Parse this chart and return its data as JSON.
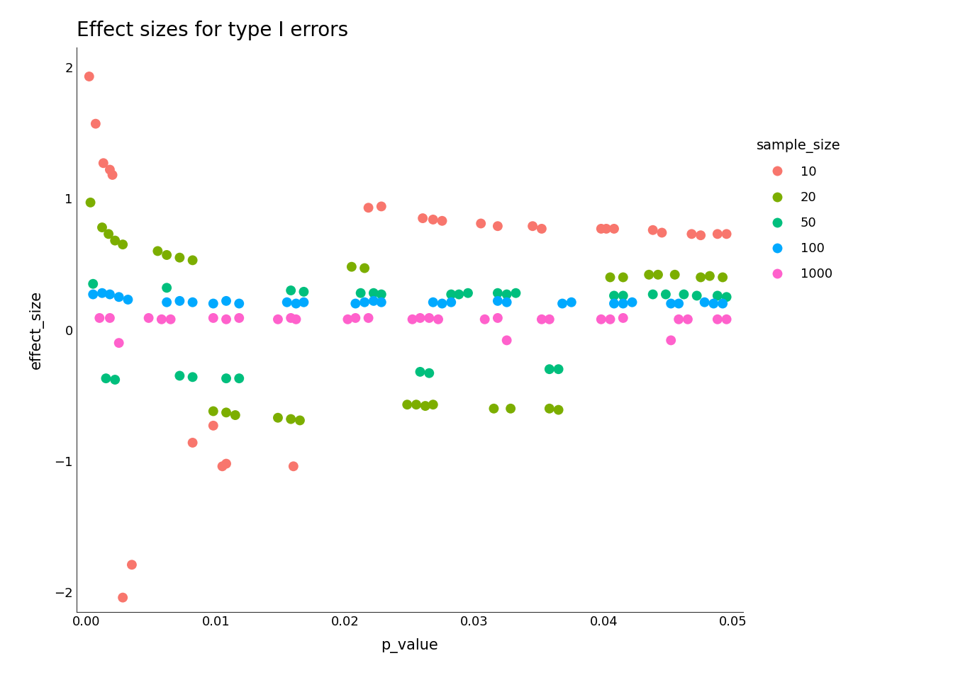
{
  "title": "Effect sizes for type I errors",
  "xlabel": "p_value",
  "ylabel": "effect_size",
  "xlim": [
    -0.0008,
    0.0508
  ],
  "ylim": [
    -2.15,
    2.15
  ],
  "xticks": [
    0.0,
    0.01,
    0.02,
    0.03,
    0.04,
    0.05
  ],
  "yticks": [
    -2,
    -1,
    0,
    1,
    2
  ],
  "background_color": "#ffffff",
  "legend_title": "sample_size",
  "groups": {
    "10": {
      "color": "#F8766D",
      "p_values": [
        0.0002,
        0.0007,
        0.0013,
        0.0018,
        0.002,
        0.0082,
        0.0098,
        0.0105,
        0.0108,
        0.016,
        0.0218,
        0.0228,
        0.026,
        0.0268,
        0.0275,
        0.0305,
        0.0318,
        0.0345,
        0.0352,
        0.0398,
        0.0402,
        0.0408,
        0.0438,
        0.0445,
        0.0468,
        0.0475,
        0.0488,
        0.0495,
        0.0028,
        0.0035
      ],
      "effect_sizes": [
        1.93,
        1.57,
        1.27,
        1.22,
        1.18,
        -0.86,
        -0.73,
        -1.04,
        -1.02,
        -1.04,
        0.93,
        0.94,
        0.85,
        0.84,
        0.83,
        0.81,
        0.79,
        0.79,
        0.77,
        0.77,
        0.77,
        0.77,
        0.76,
        0.74,
        0.73,
        0.72,
        0.73,
        0.73,
        -2.04,
        -1.79
      ]
    },
    "20": {
      "color": "#7CAE00",
      "p_values": [
        0.0003,
        0.0012,
        0.0017,
        0.0022,
        0.0028,
        0.0055,
        0.0062,
        0.0072,
        0.0082,
        0.0098,
        0.0108,
        0.0115,
        0.0148,
        0.0158,
        0.0165,
        0.0205,
        0.0215,
        0.0248,
        0.0255,
        0.0262,
        0.0268,
        0.0315,
        0.0328,
        0.0358,
        0.0365,
        0.0405,
        0.0415,
        0.0435,
        0.0442,
        0.0455,
        0.0475,
        0.0482,
        0.0492
      ],
      "effect_sizes": [
        0.97,
        0.78,
        0.73,
        0.68,
        0.65,
        0.6,
        0.57,
        0.55,
        0.53,
        -0.62,
        -0.63,
        -0.65,
        -0.67,
        -0.68,
        -0.69,
        0.48,
        0.47,
        -0.57,
        -0.57,
        -0.58,
        -0.57,
        -0.6,
        -0.6,
        -0.6,
        -0.61,
        0.4,
        0.4,
        0.42,
        0.42,
        0.42,
        0.4,
        0.41,
        0.4
      ]
    },
    "50": {
      "color": "#00BF7D",
      "p_values": [
        0.0005,
        0.0015,
        0.0022,
        0.0062,
        0.0072,
        0.0082,
        0.0108,
        0.0118,
        0.0158,
        0.0168,
        0.0212,
        0.0222,
        0.0228,
        0.0258,
        0.0265,
        0.0282,
        0.0288,
        0.0295,
        0.0318,
        0.0325,
        0.0332,
        0.0358,
        0.0365,
        0.0408,
        0.0415,
        0.0438,
        0.0448,
        0.0462,
        0.0472,
        0.0488,
        0.0495
      ],
      "effect_sizes": [
        0.35,
        -0.37,
        -0.38,
        0.32,
        -0.35,
        -0.36,
        -0.37,
        -0.37,
        0.3,
        0.29,
        0.28,
        0.28,
        0.27,
        -0.32,
        -0.33,
        0.27,
        0.27,
        0.28,
        0.28,
        0.27,
        0.28,
        -0.3,
        -0.3,
        0.26,
        0.26,
        0.27,
        0.27,
        0.27,
        0.26,
        0.26,
        0.25
      ]
    },
    "100": {
      "color": "#00A9FF",
      "p_values": [
        0.0005,
        0.0012,
        0.0018,
        0.0025,
        0.0032,
        0.0062,
        0.0072,
        0.0082,
        0.0098,
        0.0108,
        0.0118,
        0.0155,
        0.0162,
        0.0168,
        0.0208,
        0.0215,
        0.0222,
        0.0228,
        0.0268,
        0.0275,
        0.0282,
        0.0318,
        0.0325,
        0.0368,
        0.0375,
        0.0408,
        0.0415,
        0.0422,
        0.0452,
        0.0458,
        0.0478,
        0.0485,
        0.0492
      ],
      "effect_sizes": [
        0.27,
        0.28,
        0.27,
        0.25,
        0.23,
        0.21,
        0.22,
        0.21,
        0.2,
        0.22,
        0.2,
        0.21,
        0.2,
        0.21,
        0.2,
        0.21,
        0.22,
        0.21,
        0.21,
        0.2,
        0.21,
        0.22,
        0.21,
        0.2,
        0.21,
        0.2,
        0.2,
        0.21,
        0.2,
        0.2,
        0.21,
        0.2,
        0.2
      ]
    },
    "1000": {
      "color": "#FF61CC",
      "p_values": [
        0.001,
        0.0018,
        0.0025,
        0.0048,
        0.0058,
        0.0065,
        0.0098,
        0.0108,
        0.0118,
        0.0148,
        0.0158,
        0.0162,
        0.0202,
        0.0208,
        0.0218,
        0.0252,
        0.0258,
        0.0265,
        0.0272,
        0.0308,
        0.0318,
        0.0325,
        0.0352,
        0.0358,
        0.0398,
        0.0405,
        0.0415,
        0.0452,
        0.0458,
        0.0465,
        0.0488,
        0.0495
      ],
      "effect_sizes": [
        0.09,
        0.09,
        -0.1,
        0.09,
        0.08,
        0.08,
        0.09,
        0.08,
        0.09,
        0.08,
        0.09,
        0.08,
        0.08,
        0.09,
        0.09,
        0.08,
        0.09,
        0.09,
        0.08,
        0.08,
        0.09,
        -0.08,
        0.08,
        0.08,
        0.08,
        0.08,
        0.09,
        -0.08,
        0.08,
        0.08,
        0.08,
        0.08
      ]
    }
  }
}
